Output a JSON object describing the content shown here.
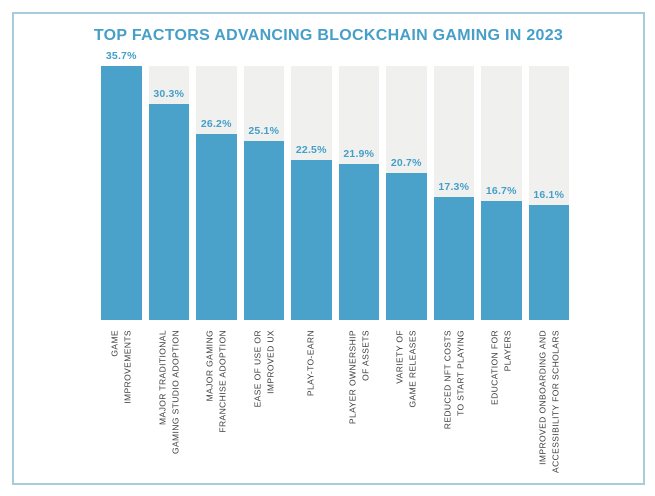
{
  "header": {
    "title": "TOP FACTORS ADVANCING BLOCKCHAIN GAMING IN 2023"
  },
  "colors": {
    "bar_blue": "#4aa2ca",
    "title_blue": "#459fc8",
    "track_gray": "#f0f0ef",
    "frame_border": "#a9cbdc",
    "axis_text": "#3e3e3e"
  },
  "chart_data": {
    "type": "bar",
    "title": "TOP FACTORS ADVANCING BLOCKCHAIN GAMING IN 2023",
    "categories": [
      "GAME\nIMPROVEMENTS",
      "MAJOR TRADITIONAL\nGAMING STUDIO ADOPTION",
      "MAJOR GAMING\nFRANCHISE ADOPTION",
      "EASE OF USE OR\nIMPROVED UX",
      "PLAY-TO-EARN",
      "PLAYER OWNERSHIP\nOF ASSETS",
      "VARIETY OF\nGAME RELEASES",
      "REDUCED NFT COSTS\nTO START PLAYING",
      "EDUCATION FOR\nPLAYERS",
      "IMPROVED ONBOARDING AND\nACCESSIBILITY FOR SCHOLARS"
    ],
    "values": [
      35.7,
      30.3,
      26.2,
      25.1,
      22.5,
      21.9,
      20.7,
      17.3,
      16.7,
      16.1
    ],
    "value_labels": [
      "35.7%",
      "30.3%",
      "26.2%",
      "25.1%",
      "22.5%",
      "21.9%",
      "20.7%",
      "17.3%",
      "16.7%",
      "16.1%"
    ],
    "xlabel": "",
    "ylabel": "",
    "ylim": [
      0,
      35.7
    ],
    "grid": false,
    "legend": false,
    "category_label_rotation": -90,
    "bar_background_track": "full-height"
  }
}
